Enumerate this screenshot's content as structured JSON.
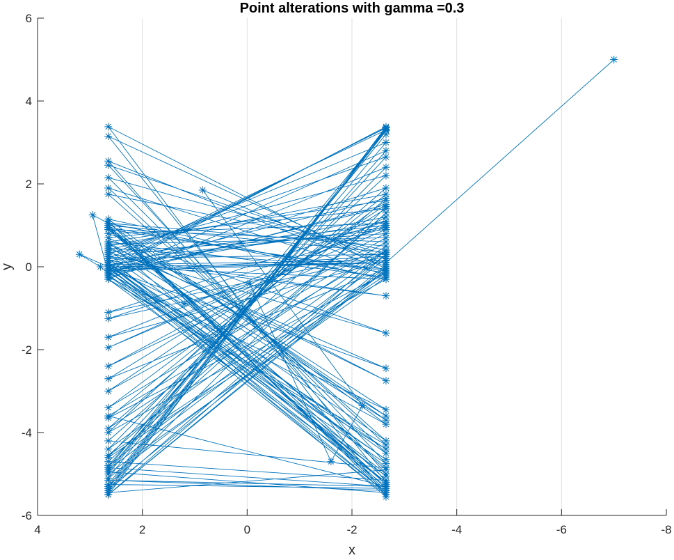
{
  "chart_data": {
    "type": "line",
    "title": "Point alterations with gamma =0.3",
    "xlabel": "x",
    "ylabel": "y",
    "xlim": [
      4,
      -8
    ],
    "ylim": [
      -6,
      6
    ],
    "x_reversed": true,
    "xticks": [
      4,
      2,
      0,
      -2,
      -4,
      -6,
      -8
    ],
    "yticks": [
      -6,
      -4,
      -2,
      0,
      2,
      4,
      6
    ],
    "xtick_labels": [
      "4",
      "2",
      "0",
      "-2",
      "-4",
      "-6",
      "-8"
    ],
    "ytick_labels": [
      "-6",
      "-4",
      "-2",
      "0",
      "2",
      "4",
      "6"
    ],
    "xgrid": true,
    "ygrid": false,
    "marker": "asterisk",
    "line_color": "#0072BD",
    "series": [
      {
        "points": [
          [
            -7.0,
            5.0
          ],
          [
            -2.65,
            0.1
          ],
          [
            2.65,
            -0.1
          ],
          [
            -2.65,
            3.38
          ],
          [
            2.65,
            -5.5
          ],
          [
            -2.65,
            -0.05
          ],
          [
            2.65,
            3.38
          ],
          [
            -2.65,
            -5.55
          ],
          [
            2.65,
            0.0
          ],
          [
            -2.65,
            3.35
          ],
          [
            2.65,
            -5.35
          ],
          [
            -2.65,
            0.05
          ],
          [
            2.65,
            3.15
          ],
          [
            -2.65,
            -5.2
          ],
          [
            2.65,
            0.1
          ],
          [
            -2.65,
            3.3
          ],
          [
            2.65,
            -5.1
          ],
          [
            -2.65,
            -0.1
          ],
          [
            2.65,
            2.55
          ],
          [
            -2.65,
            -5.0
          ],
          [
            2.65,
            0.2
          ],
          [
            -2.65,
            3.0
          ],
          [
            2.65,
            -4.9
          ],
          [
            -2.65,
            0.2
          ],
          [
            2.65,
            2.45
          ],
          [
            -2.65,
            -4.75
          ],
          [
            2.65,
            -0.2
          ],
          [
            -2.65,
            2.8
          ],
          [
            2.65,
            -4.8
          ],
          [
            -2.65,
            0.3
          ],
          [
            2.65,
            2.15
          ],
          [
            -2.65,
            -4.5
          ],
          [
            2.65,
            0.3
          ],
          [
            -2.65,
            2.65
          ],
          [
            2.65,
            -4.6
          ],
          [
            -2.65,
            -0.2
          ],
          [
            2.65,
            1.9
          ],
          [
            -2.65,
            -4.3
          ],
          [
            2.65,
            -0.3
          ],
          [
            -2.65,
            2.4
          ],
          [
            2.65,
            -4.4
          ],
          [
            -2.65,
            0.4
          ],
          [
            2.65,
            1.75
          ],
          [
            -2.65,
            -4.2
          ],
          [
            2.65,
            0.4
          ],
          [
            -2.65,
            2.2
          ],
          [
            2.65,
            -4.0
          ],
          [
            -2.65,
            -0.3
          ],
          [
            2.65,
            1.15
          ],
          [
            -2.65,
            -3.8
          ],
          [
            2.65,
            -0.15
          ],
          [
            -2.65,
            1.9
          ],
          [
            2.65,
            -3.9
          ],
          [
            -2.65,
            0.5
          ],
          [
            2.65,
            1.05
          ],
          [
            -2.65,
            -3.7
          ],
          [
            2.65,
            0.5
          ],
          [
            -2.65,
            1.75
          ],
          [
            2.65,
            -3.65
          ],
          [
            -2.65,
            -0.15
          ],
          [
            2.65,
            0.95
          ],
          [
            -2.65,
            -3.6
          ],
          [
            2.65,
            0.6
          ],
          [
            -2.65,
            1.6
          ],
          [
            2.65,
            -3.4
          ],
          [
            -2.65,
            0.6
          ],
          [
            2.65,
            0.9
          ],
          [
            -2.65,
            -3.45
          ],
          [
            2.65,
            -0.25
          ],
          [
            -2.65,
            1.5
          ],
          [
            2.65,
            -3.0
          ],
          [
            -2.65,
            0.7
          ],
          [
            2.65,
            0.55
          ],
          [
            -2.65,
            -2.75
          ],
          [
            2.65,
            0.7
          ],
          [
            -2.65,
            1.4
          ],
          [
            2.65,
            -2.7
          ],
          [
            -2.65,
            -0.05
          ],
          [
            2.65,
            0.45
          ],
          [
            -2.65,
            -2.45
          ],
          [
            2.65,
            -0.05
          ],
          [
            -2.65,
            1.2
          ],
          [
            2.65,
            -2.4
          ],
          [
            -2.65,
            0.8
          ],
          [
            2.65,
            0.35
          ],
          [
            -2.65,
            -1.6
          ],
          [
            2.65,
            0.8
          ],
          [
            -2.65,
            1.05
          ],
          [
            2.65,
            -1.95
          ],
          [
            -2.65,
            0.9
          ],
          [
            2.65,
            0.15
          ],
          [
            -2.65,
            -0.7
          ],
          [
            2.65,
            0.25
          ],
          [
            -2.65,
            1.0
          ],
          [
            2.65,
            -1.7
          ],
          [
            -2.65,
            0.15
          ],
          [
            2.65,
            0.05
          ],
          [
            -2.65,
            0.95
          ],
          [
            2.65,
            -1.25
          ],
          [
            -2.65,
            0.25
          ],
          [
            2.65,
            -0.1
          ],
          [
            -2.65,
            1.1
          ],
          [
            2.65,
            -1.1
          ],
          [
            -2.65,
            0.35
          ],
          [
            2.65,
            1.0
          ],
          [
            -2.65,
            -5.4
          ],
          [
            2.65,
            -5.15
          ],
          [
            -2.65,
            -5.3
          ],
          [
            2.65,
            -4.85
          ],
          [
            -2.65,
            3.32
          ],
          [
            2.65,
            -5.45
          ],
          [
            -2.65,
            -4.9
          ],
          [
            2.65,
            0.95
          ],
          [
            -2.65,
            -5.35
          ],
          [
            2.65,
            -5.25
          ],
          [
            -2.65,
            3.28
          ],
          [
            2.65,
            -5.3
          ],
          [
            -2.65,
            1.45
          ],
          [
            2.65,
            -0.2
          ],
          [
            -2.65,
            -5.5
          ],
          [
            2.65,
            1.1
          ],
          [
            -2.65,
            -5.45
          ],
          [
            2.65,
            -4.95
          ],
          [
            -2.65,
            3.2
          ],
          [
            2.65,
            -5.0
          ],
          [
            -2.65,
            -0.25
          ],
          [
            2.65,
            0.6
          ],
          [
            -2.65,
            -5.25
          ],
          [
            2.65,
            1.0
          ],
          [
            -2.65,
            -5.15
          ],
          [
            2.65,
            -4.7
          ],
          [
            -2.65,
            1.3
          ],
          [
            2.65,
            -4.55
          ],
          [
            -2.65,
            -0.1
          ],
          [
            2.65,
            0.9
          ],
          [
            -2.65,
            -4.85
          ],
          [
            2.65,
            -4.2
          ],
          [
            -2.65,
            1.65
          ],
          [
            2.65,
            0.0
          ],
          [
            -2.65,
            -5.3
          ],
          [
            2.65,
            -3.6
          ],
          [
            -2.65,
            0.4
          ],
          [
            2.65,
            -5.4
          ],
          [
            -2.65,
            3.36
          ],
          [
            2.65,
            -0.05
          ],
          [
            -2.65,
            -4.65
          ],
          [
            2.65,
            0.05
          ],
          [
            -2.65,
            -5.05
          ],
          [
            2.65,
            -0.1
          ],
          [
            -2.65,
            -5.45
          ],
          [
            2.65,
            0.1
          ],
          [
            -2.65,
            -4.4
          ],
          [
            2.65,
            -0.3
          ],
          [
            -2.65,
            -5.2
          ],
          [
            2.65,
            0.2
          ],
          [
            -2.65,
            0.3
          ],
          [
            2.65,
            -5.5
          ],
          [
            -2.65,
            0.0
          ],
          [
            0.85,
            1.85
          ],
          [
            -2.2,
            -3.35
          ],
          [
            -1.6,
            -4.7
          ],
          [
            -0.05,
            -0.4
          ],
          [
            1.2,
            -0.9
          ],
          [
            2.65,
            0.0
          ],
          [
            3.2,
            0.3
          ],
          [
            2.8,
            0.0
          ],
          [
            2.65,
            -0.15
          ],
          [
            2.95,
            1.25
          ],
          [
            2.65,
            1.05
          ],
          [
            -2.65,
            -0.3
          ],
          [
            2.65,
            0.0
          ],
          [
            -2.65,
            0.1
          ],
          [
            2.65,
            -0.05
          ]
        ]
      }
    ]
  }
}
